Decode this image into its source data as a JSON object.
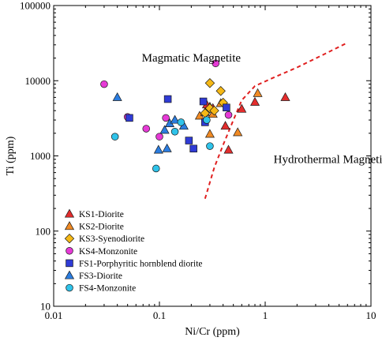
{
  "chart_data": {
    "type": "scatter",
    "xlabel": "Ni/Cr (ppm)",
    "ylabel": "Ti (ppm)",
    "xscale": "log",
    "yscale": "log",
    "xlim": [
      0.01,
      10
    ],
    "ylim": [
      10,
      100000
    ],
    "x_ticks": [
      {
        "value": 0.01,
        "label": "0.01"
      },
      {
        "value": 0.1,
        "label": "0.1"
      },
      {
        "value": 1,
        "label": "1"
      },
      {
        "value": 10,
        "label": "10"
      }
    ],
    "y_ticks": [
      {
        "value": 10,
        "label": "10"
      },
      {
        "value": 100,
        "label": "100"
      },
      {
        "value": 1000,
        "label": "1000"
      },
      {
        "value": 10000,
        "label": "10000"
      },
      {
        "value": 100000,
        "label": "100000"
      }
    ],
    "grid": false,
    "legend_position": "bottom-left",
    "annotations": [
      {
        "text": "Magmatic Magnetite",
        "x": 0.2,
        "y": 18000
      },
      {
        "text": "Hydrothermal Magnetite",
        "x": 1.2,
        "y": 800
      }
    ],
    "boundary": {
      "style": "dashed",
      "color": "#e02020",
      "points": [
        [
          0.27,
          270
        ],
        [
          0.33,
          700
        ],
        [
          0.4,
          1400
        ],
        [
          0.5,
          3000
        ],
        [
          0.6,
          5500
        ],
        [
          0.8,
          8500
        ],
        [
          1.2,
          11000
        ],
        [
          2.0,
          15000
        ],
        [
          3.5,
          22000
        ],
        [
          6.0,
          32000
        ]
      ]
    },
    "series": [
      {
        "name": "KS1-Diorite",
        "marker": "triangle",
        "color": "#e32d2d",
        "points": [
          [
            0.28,
            4800
          ],
          [
            0.32,
            4300
          ],
          [
            0.42,
            2500
          ],
          [
            0.45,
            1200
          ],
          [
            0.6,
            4200
          ],
          [
            0.8,
            5200
          ],
          [
            1.55,
            6000
          ]
        ]
      },
      {
        "name": "KS2-Diorite",
        "marker": "triangle",
        "color": "#f08a24",
        "points": [
          [
            0.24,
            3400
          ],
          [
            0.27,
            3800
          ],
          [
            0.3,
            4500
          ],
          [
            0.32,
            3600
          ],
          [
            0.3,
            1950
          ],
          [
            0.38,
            5000
          ],
          [
            0.55,
            2050
          ],
          [
            0.85,
            6800
          ]
        ]
      },
      {
        "name": "KS3-Syenodiorite",
        "marker": "diamond",
        "color": "#f5b816",
        "points": [
          [
            0.3,
            9300
          ],
          [
            0.27,
            3700
          ],
          [
            0.3,
            4300
          ],
          [
            0.33,
            4000
          ],
          [
            0.38,
            7300
          ],
          [
            0.4,
            5100
          ]
        ]
      },
      {
        "name": "KS4-Monzonite",
        "marker": "circle",
        "color": "#e63ad6",
        "points": [
          [
            0.03,
            9000
          ],
          [
            0.05,
            3300
          ],
          [
            0.075,
            2300
          ],
          [
            0.1,
            1800
          ],
          [
            0.115,
            3200
          ],
          [
            0.34,
            17000
          ],
          [
            0.45,
            3500
          ]
        ]
      },
      {
        "name": "FS1-Porphyritic hornblend diorite",
        "marker": "square",
        "color": "#2f3bd6",
        "points": [
          [
            0.052,
            3200
          ],
          [
            0.12,
            5700
          ],
          [
            0.19,
            1600
          ],
          [
            0.21,
            1250
          ],
          [
            0.26,
            5300
          ],
          [
            0.27,
            2800
          ],
          [
            0.43,
            4400
          ]
        ]
      },
      {
        "name": "FS3-Diorite",
        "marker": "triangle",
        "color": "#2b7de0",
        "points": [
          [
            0.04,
            6000
          ],
          [
            0.098,
            1200
          ],
          [
            0.112,
            2200
          ],
          [
            0.118,
            1250
          ],
          [
            0.125,
            2700
          ],
          [
            0.14,
            3000
          ],
          [
            0.17,
            2500
          ]
        ]
      },
      {
        "name": "FS4-Monzonite",
        "marker": "circle",
        "color": "#2fc3ea",
        "points": [
          [
            0.038,
            1800
          ],
          [
            0.093,
            680
          ],
          [
            0.14,
            2100
          ],
          [
            0.16,
            2800
          ],
          [
            0.28,
            3000
          ],
          [
            0.3,
            1350
          ]
        ]
      }
    ]
  }
}
